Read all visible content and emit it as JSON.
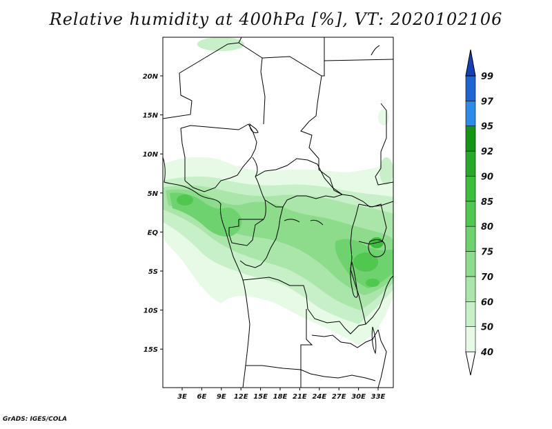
{
  "title": "Relative humidity at 400hPa [%], VT: 2020102106",
  "footer": "GrADS: IGES/COLA",
  "map": {
    "lat_labels": [
      "20N",
      "15N",
      "10N",
      "5N",
      "EQ",
      "5S",
      "10S",
      "15S"
    ],
    "lon_labels": [
      "3E",
      "6E",
      "9E",
      "12E",
      "15E",
      "18E",
      "21E",
      "24E",
      "27E",
      "30E",
      "33E"
    ]
  },
  "colorbar": {
    "levels": [
      "40",
      "50",
      "60",
      "70",
      "75",
      "80",
      "85",
      "90",
      "92",
      "95",
      "97",
      "99"
    ],
    "colors": [
      "#e6fae6",
      "#c8f0c8",
      "#aae6aa",
      "#8cdc8c",
      "#6ed26e",
      "#50c850",
      "#3cbe3c",
      "#28a828",
      "#149614",
      "#2a8ce6",
      "#1e64d2",
      "#1440b4"
    ]
  }
}
